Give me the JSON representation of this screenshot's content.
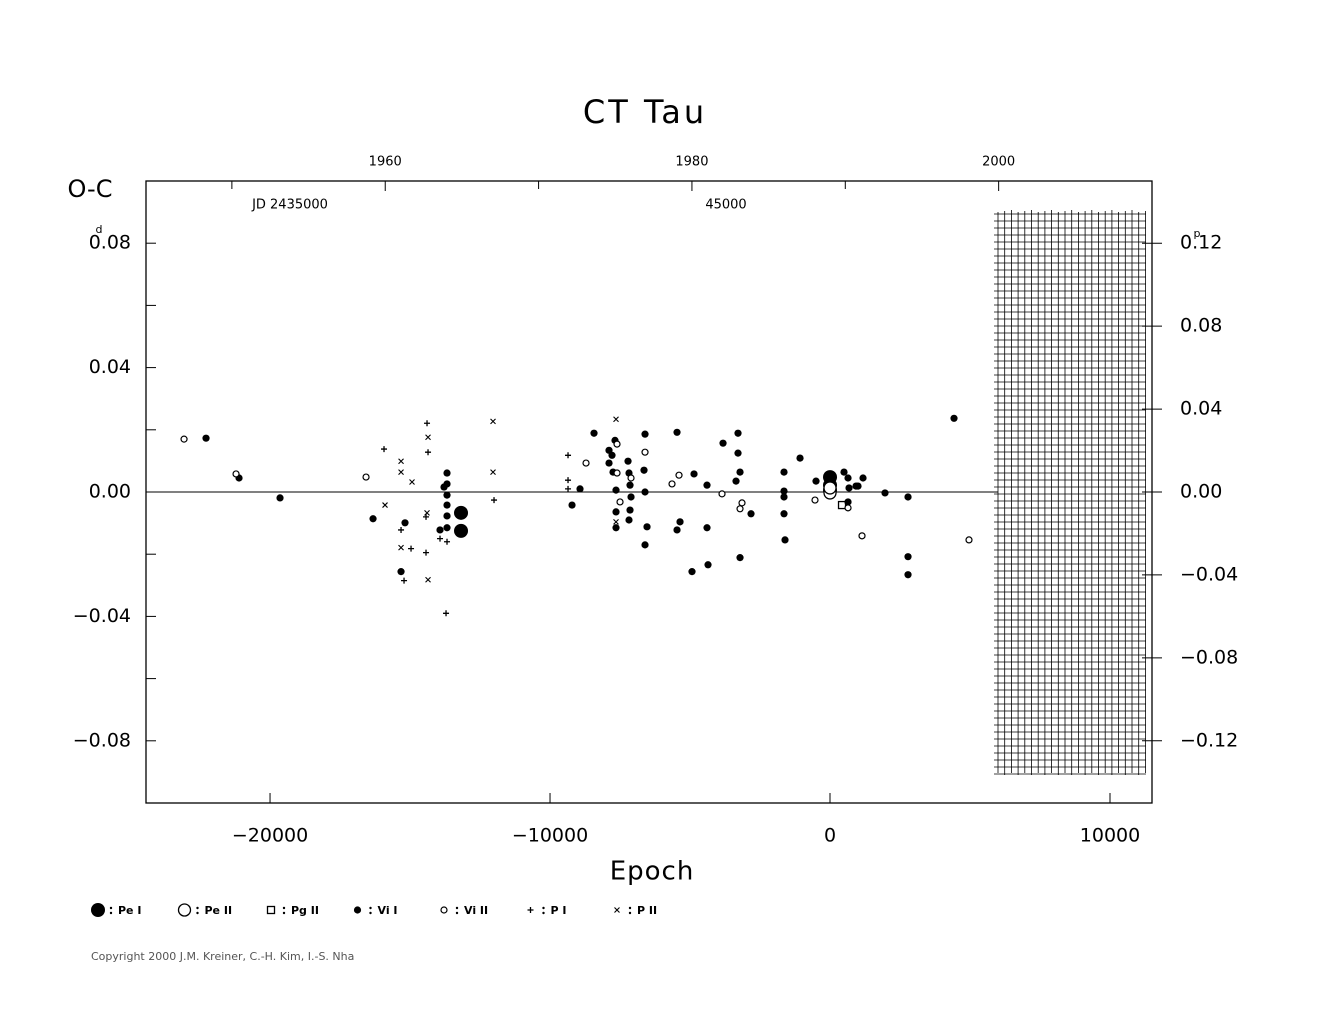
{
  "chart_data": {
    "type": "scatter",
    "title": "CT Tau",
    "x_label": "Epoch",
    "y_label": "O-C",
    "y_unit": "d",
    "y2_unit": "p",
    "top_annotations": [
      "JD 2435000",
      "45000"
    ],
    "copyright": "Copyright 2000 J.M. Kreiner, C.-H. Kim, I.-S. Nha",
    "xlim": [
      -24430,
      11500
    ],
    "xticks": [
      {
        "value": -20000,
        "label": "−20000"
      },
      {
        "value": -10000,
        "label": "−10000"
      },
      0,
      10000
    ],
    "ylim": [
      -0.1,
      0.1
    ],
    "yticks": [
      {
        "value": -0.08,
        "label": "−0.08"
      },
      {
        "value": -0.04,
        "label": "−0.04"
      },
      {
        "value": 0,
        "label": "0.00"
      },
      0.04,
      0.08
    ],
    "yminor_ticks": [
      -0.06,
      -0.02,
      0.02,
      0.06
    ],
    "y2lim": [
      -0.15,
      0.15
    ],
    "y2ticks": [
      {
        "value": -0.12,
        "label": "−0.12"
      },
      {
        "value": -0.08,
        "label": "−0.08"
      },
      {
        "value": -0.04,
        "label": "−0.04"
      },
      {
        "value": 0,
        "label": "0.00"
      },
      0.04,
      0.08,
      0.12
    ],
    "top_xlim": [
      1944.4,
      2010.0
    ],
    "top_xticks": [
      1960,
      1980,
      2000
    ],
    "top_minor_ticks": [
      1950,
      1970,
      1990
    ],
    "series": [
      {
        "name": "Pe I",
        "marker": "large-dot",
        "color": "#000000",
        "x": [
          0,
          0,
          0,
          -13179,
          -13179
        ],
        "values": [
          0.0048,
          0.0022,
          0.0006,
          -0.0067,
          -0.0125
        ]
      },
      {
        "name": "Pe II",
        "marker": "large-ring",
        "color": "#000000",
        "x": [
          0,
          0
        ],
        "values": [
          -0.0003,
          0.0013
        ]
      },
      {
        "name": "Pg II",
        "marker": "square",
        "color": "#000000",
        "x": [
          429
        ],
        "values": [
          -0.0042
        ]
      },
      {
        "name": "Vi I",
        "marker": "dot",
        "color": "#000000",
        "x": [
          -22286,
          -21107,
          -19643,
          -16321,
          -15179,
          -15321,
          -13679,
          -13679,
          -13679,
          -13679,
          -13679,
          -13679,
          -13786,
          -13929,
          -9214,
          -8929,
          -8429,
          -7893,
          -7893,
          -7750,
          -7643,
          -7643,
          -7643,
          -7679,
          -7786,
          -7214,
          -7179,
          -7143,
          -7107,
          -7143,
          -7179,
          -6607,
          -6643,
          -6607,
          -6607,
          -6536,
          -5464,
          -5464,
          -5357,
          -4857,
          -4929,
          -4393,
          -4393,
          -4357,
          -3821,
          -3286,
          -3286,
          -3214,
          -3357,
          -3214,
          -2821,
          -1643,
          -1643,
          -1643,
          -1643,
          -1607,
          -1071,
          -500,
          500,
          643,
          679,
          643,
          929,
          1000,
          1179,
          1964,
          2786,
          2786,
          2786,
          4429
        ],
        "values": [
          0.0173,
          0.0045,
          -0.0019,
          -0.0086,
          -0.0099,
          -0.0256,
          0.0061,
          0.0026,
          -0.001,
          -0.0042,
          -0.0077,
          -0.0115,
          0.0016,
          -0.0122,
          -0.0042,
          0.001,
          0.0189,
          0.0134,
          0.0093,
          0.0064,
          -0.0064,
          -0.0115,
          0.0006,
          0.0166,
          0.0118,
          0.0099,
          0.0061,
          0.0022,
          -0.0016,
          -0.0058,
          -0.009,
          0.0186,
          0.007,
          0,
          -0.017,
          -0.0112,
          0.0192,
          -0.0122,
          -0.0096,
          0.0058,
          -0.0256,
          0.0022,
          -0.0115,
          -0.0234,
          0.0157,
          0.0189,
          0.0125,
          0.0064,
          0.0035,
          -0.0211,
          -0.007,
          0.0064,
          0.0003,
          -0.0016,
          -0.007,
          -0.0154,
          0.0109,
          0.0035,
          0.0064,
          0.0045,
          0.0013,
          -0.0032,
          0.0019,
          0.0019,
          0.0045,
          -0.0003,
          -0.0016,
          -0.0208,
          -0.0266,
          0.0237
        ]
      },
      {
        "name": "Vi II",
        "marker": "ring",
        "color": "#000000",
        "x": [
          -23071,
          -21214,
          -16571,
          -8714,
          -7607,
          -7607,
          -7500,
          -7107,
          -6607,
          -5643,
          -5393,
          -3857,
          -3143,
          -3214,
          -536,
          643,
          1143,
          4964
        ],
        "values": [
          0.017,
          0.0058,
          0.0048,
          0.0093,
          0.0154,
          0.0061,
          -0.0032,
          0.0045,
          0.0128,
          0.0026,
          0.0054,
          -0.0006,
          -0.0035,
          -0.0054,
          -0.0026,
          -0.0051,
          -0.0141,
          -0.0154
        ]
      },
      {
        "name": "P I",
        "marker": "plus",
        "color": "#000000",
        "x": [
          -15929,
          -15321,
          -15214,
          -14964,
          -14429,
          -14429,
          -14393,
          -14357,
          -13929,
          -13714,
          -13679,
          -12000,
          -9357,
          -9357,
          -9357
        ],
        "values": [
          0.0138,
          -0.0122,
          -0.0285,
          -0.0182,
          -0.0195,
          -0.008,
          0.0221,
          0.0128,
          -0.015,
          -0.039,
          -0.016,
          -0.0026,
          0.0118,
          0.0038,
          0.001
        ]
      },
      {
        "name": "P II",
        "marker": "cross",
        "color": "#000000",
        "x": [
          -15893,
          -15321,
          -15321,
          -15321,
          -14929,
          -14357,
          -14357,
          -14393,
          -12036,
          -12036,
          -7643,
          -7643
        ],
        "values": [
          -0.0042,
          0.0064,
          0.0099,
          -0.0179,
          0.0032,
          -0.0282,
          0.0176,
          -0.0067,
          0.0227,
          0.0064,
          0.0234,
          -0.0096
        ]
      }
    ]
  }
}
